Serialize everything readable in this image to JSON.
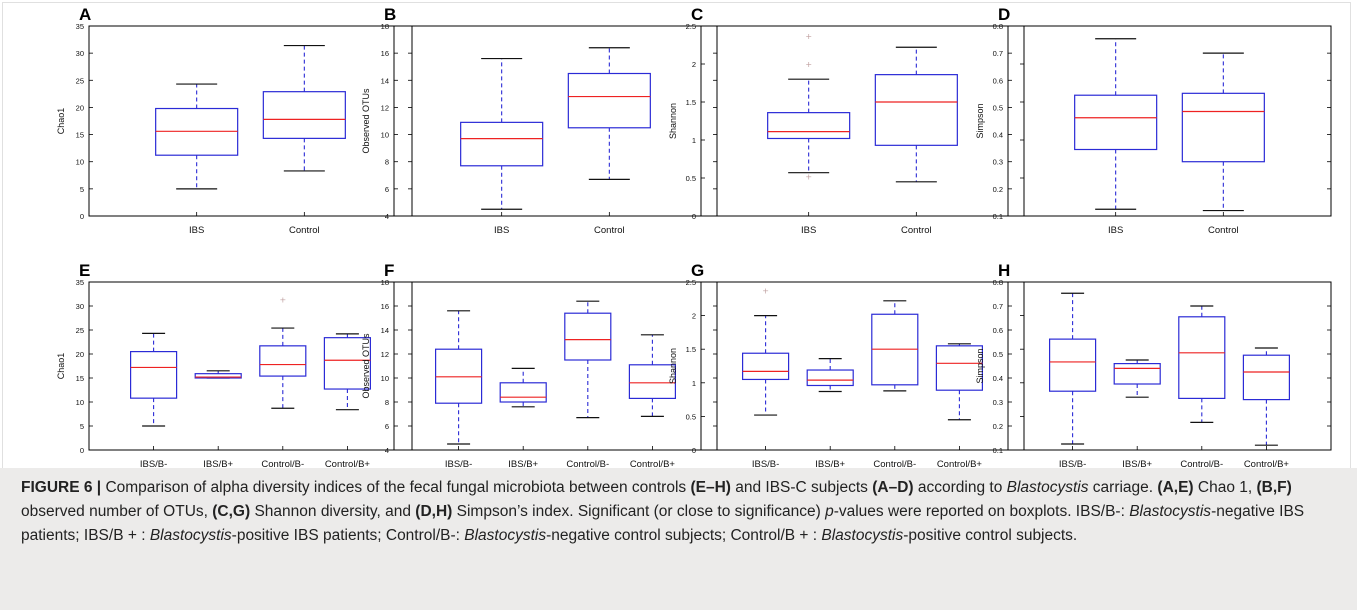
{
  "chart_data": [
    {
      "panel": "A",
      "type": "boxplot",
      "ylabel": "Chao1",
      "ylim": [
        0,
        35
      ],
      "yticks": [
        0,
        5,
        10,
        15,
        20,
        25,
        30,
        35
      ],
      "categories": [
        "IBS",
        "Control"
      ],
      "boxes": [
        {
          "whisker_low": 5,
          "q1": 11.2,
          "median": 15.6,
          "q3": 19.8,
          "whisker_high": 24.3,
          "fliers": []
        },
        {
          "whisker_low": 8.3,
          "q1": 14.3,
          "median": 17.8,
          "q3": 22.9,
          "whisker_high": 31.4,
          "fliers": []
        }
      ]
    },
    {
      "panel": "B",
      "type": "boxplot",
      "ylabel": "Observed OTUs",
      "ylim": [
        4,
        18
      ],
      "yticks": [
        4,
        6,
        8,
        10,
        12,
        14,
        16,
        18
      ],
      "categories": [
        "IBS",
        "Control"
      ],
      "boxes": [
        {
          "whisker_low": 4.5,
          "q1": 7.7,
          "median": 9.7,
          "q3": 10.9,
          "whisker_high": 15.6,
          "fliers": []
        },
        {
          "whisker_low": 6.7,
          "q1": 10.5,
          "median": 12.8,
          "q3": 14.5,
          "whisker_high": 16.4,
          "fliers": []
        }
      ]
    },
    {
      "panel": "C",
      "type": "boxplot",
      "ylabel": "Shannon",
      "ylim": [
        0,
        2.5
      ],
      "yticks": [
        0.0,
        0.5,
        1.0,
        1.5,
        2.0,
        2.5
      ],
      "categories": [
        "IBS",
        "Control"
      ],
      "boxes": [
        {
          "whisker_low": 0.57,
          "q1": 1.02,
          "median": 1.11,
          "q3": 1.36,
          "whisker_high": 1.8,
          "fliers": [
            0.52,
            2.0,
            2.37
          ]
        },
        {
          "whisker_low": 0.45,
          "q1": 0.93,
          "median": 1.5,
          "q3": 1.86,
          "whisker_high": 2.22,
          "fliers": []
        }
      ]
    },
    {
      "panel": "D",
      "type": "boxplot",
      "ylabel": "Simpson",
      "ylim": [
        0.1,
        0.8
      ],
      "yticks": [
        0.1,
        0.2,
        0.3,
        0.4,
        0.5,
        0.6,
        0.7,
        0.8
      ],
      "categories": [
        "IBS",
        "Control"
      ],
      "boxes": [
        {
          "whisker_low": 0.125,
          "q1": 0.345,
          "median": 0.462,
          "q3": 0.545,
          "whisker_high": 0.753,
          "fliers": []
        },
        {
          "whisker_low": 0.12,
          "q1": 0.3,
          "median": 0.485,
          "q3": 0.552,
          "whisker_high": 0.7,
          "fliers": []
        }
      ]
    },
    {
      "panel": "E",
      "type": "boxplot",
      "ylabel": "Chao1",
      "ylim": [
        0,
        35
      ],
      "yticks": [
        0,
        5,
        10,
        15,
        20,
        25,
        30,
        35
      ],
      "categories": [
        "IBS/B-",
        "IBS/B+",
        "Control/B-",
        "Control/B+"
      ],
      "boxes": [
        {
          "whisker_low": 5,
          "q1": 10.8,
          "median": 17.2,
          "q3": 20.5,
          "whisker_high": 24.3,
          "fliers": []
        },
        {
          "whisker_low": 15,
          "q1": 15,
          "median": 15.2,
          "q3": 15.9,
          "whisker_high": 16.5,
          "fliers": []
        },
        {
          "whisker_low": 8.7,
          "q1": 15.4,
          "median": 17.8,
          "q3": 21.7,
          "whisker_high": 25.4,
          "fliers": [
            31.4
          ]
        },
        {
          "whisker_low": 8.4,
          "q1": 12.7,
          "median": 18.7,
          "q3": 23.4,
          "whisker_high": 24.2,
          "fliers": []
        }
      ]
    },
    {
      "panel": "F",
      "type": "boxplot",
      "ylabel": "Observed OTUs",
      "ylim": [
        4,
        18
      ],
      "yticks": [
        4,
        6,
        8,
        10,
        12,
        14,
        16,
        18
      ],
      "categories": [
        "IBS/B-",
        "IBS/B+",
        "Control/B-",
        "Control/B+"
      ],
      "boxes": [
        {
          "whisker_low": 4.5,
          "q1": 7.9,
          "median": 10.1,
          "q3": 12.4,
          "whisker_high": 15.6,
          "fliers": []
        },
        {
          "whisker_low": 7.6,
          "q1": 8,
          "median": 8.4,
          "q3": 9.6,
          "whisker_high": 10.8,
          "fliers": []
        },
        {
          "whisker_low": 6.7,
          "q1": 11.5,
          "median": 13.2,
          "q3": 15.4,
          "whisker_high": 16.4,
          "fliers": []
        },
        {
          "whisker_low": 6.8,
          "q1": 8.3,
          "median": 9.6,
          "q3": 11.1,
          "whisker_high": 13.6,
          "fliers": []
        }
      ]
    },
    {
      "panel": "G",
      "type": "boxplot",
      "ylabel": "Shannon",
      "ylim": [
        0,
        2.5
      ],
      "yticks": [
        0.0,
        0.5,
        1.0,
        1.5,
        2.0,
        2.5
      ],
      "categories": [
        "IBS/B-",
        "IBS/B+",
        "Control/B-",
        "Control/B+"
      ],
      "boxes": [
        {
          "whisker_low": 0.52,
          "q1": 1.05,
          "median": 1.17,
          "q3": 1.44,
          "whisker_high": 2.0,
          "fliers": [
            2.37
          ]
        },
        {
          "whisker_low": 0.87,
          "q1": 0.96,
          "median": 1.04,
          "q3": 1.19,
          "whisker_high": 1.36,
          "fliers": []
        },
        {
          "whisker_low": 0.88,
          "q1": 0.97,
          "median": 1.5,
          "q3": 2.02,
          "whisker_high": 2.22,
          "fliers": []
        },
        {
          "whisker_low": 0.45,
          "q1": 0.89,
          "median": 1.29,
          "q3": 1.55,
          "whisker_high": 1.58,
          "fliers": []
        }
      ]
    },
    {
      "panel": "H",
      "type": "boxplot",
      "ylabel": "Simpson",
      "ylim": [
        0.1,
        0.8
      ],
      "yticks": [
        0.1,
        0.2,
        0.3,
        0.4,
        0.5,
        0.6,
        0.7,
        0.8
      ],
      "categories": [
        "IBS/B-",
        "IBS/B+",
        "Control/B-",
        "Control/B+"
      ],
      "boxes": [
        {
          "whisker_low": 0.125,
          "q1": 0.345,
          "median": 0.467,
          "q3": 0.562,
          "whisker_high": 0.753,
          "fliers": []
        },
        {
          "whisker_low": 0.32,
          "q1": 0.375,
          "median": 0.44,
          "q3": 0.46,
          "whisker_high": 0.475,
          "fliers": []
        },
        {
          "whisker_low": 0.215,
          "q1": 0.315,
          "median": 0.505,
          "q3": 0.655,
          "whisker_high": 0.7,
          "fliers": []
        },
        {
          "whisker_low": 0.12,
          "q1": 0.31,
          "median": 0.425,
          "q3": 0.495,
          "whisker_high": 0.525,
          "fliers": []
        }
      ]
    }
  ],
  "caption": {
    "figure_label": "FIGURE 6 |",
    "segments": [
      {
        "t": " Comparison of alpha diversity indices of the fecal fungal microbiota between controls "
      },
      {
        "t": "(E–H)",
        "b": true
      },
      {
        "t": " and IBS-C subjects "
      },
      {
        "t": "(A–D)",
        "b": true
      },
      {
        "t": " according to "
      },
      {
        "t": "Blastocystis",
        "i": true
      },
      {
        "t": " carriage. "
      },
      {
        "t": "(A,E)",
        "b": true
      },
      {
        "t": " Chao 1, "
      },
      {
        "t": "(B,F)",
        "b": true
      },
      {
        "t": " observed number of OTUs, "
      },
      {
        "t": "(C,G)",
        "b": true
      },
      {
        "t": " Shannon diversity, and "
      },
      {
        "t": "(D,H)",
        "b": true
      },
      {
        "t": " Simpson’s index. Significant (or close to significance) "
      },
      {
        "t": "p",
        "i": true
      },
      {
        "t": "-values were reported on boxplots. IBS/B-: "
      },
      {
        "t": "Blastocystis",
        "i": true
      },
      {
        "t": "-negative IBS patients; IBS/B + : "
      },
      {
        "t": "Blastocystis",
        "i": true
      },
      {
        "t": "-positive IBS patients; Control/B-: "
      },
      {
        "t": "Blastocystis",
        "i": true
      },
      {
        "t": "-negative control subjects; Control/B + : "
      },
      {
        "t": "Blastocystis",
        "i": true
      },
      {
        "t": "-positive control subjects."
      }
    ]
  },
  "colors": {
    "box": "#2b2bd6",
    "median": "#ee2222",
    "whisker": "#2b2bd6",
    "cap": "#111111",
    "flier": "#c0a0a0"
  }
}
